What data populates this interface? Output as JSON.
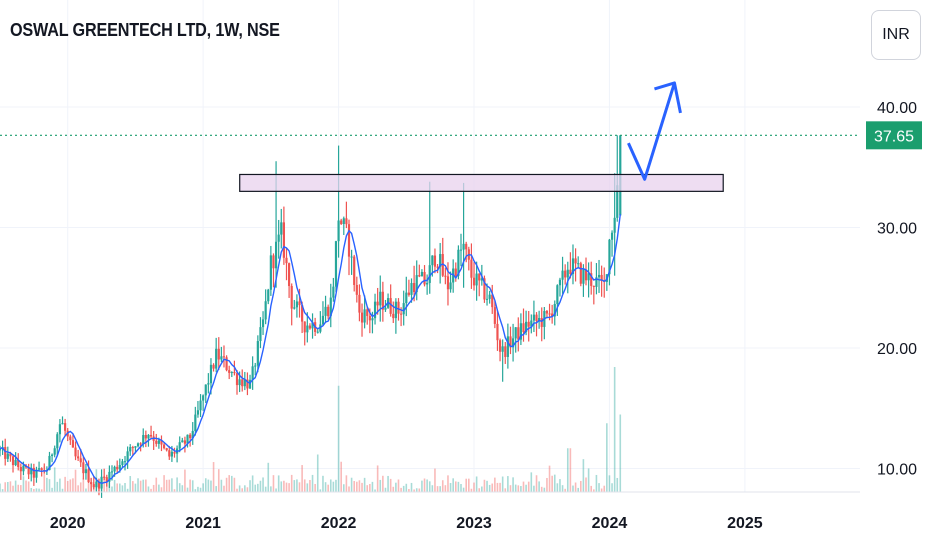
{
  "header": {
    "title": "OSWAL GREENTECH LTD, 1W, NSE",
    "currency": "INR"
  },
  "colors": {
    "up": "#26a69a",
    "down": "#ef5350",
    "ma": "#2962ff",
    "zone_fill": "#e8d2ee",
    "last_price_bg": "#1b9e6e",
    "arrow": "#2962ff"
  },
  "chart_data": {
    "type": "candlestick",
    "timeframe": "1W",
    "exchange": "NSE",
    "last_price": 37.65,
    "last_price_label": "37.65",
    "price_ticks": [
      "40.00",
      "30.00",
      "20.00",
      "10.00"
    ],
    "price_tick_values": [
      40,
      30,
      20,
      10
    ],
    "year_ticks": [
      "2020",
      "2021",
      "2022",
      "2023",
      "2024",
      "2025"
    ],
    "year_tick_values": [
      2020,
      2021,
      2022,
      2023,
      2024,
      2025
    ],
    "x_range": [
      2019.5,
      2025.85
    ],
    "y_range": [
      7.5,
      43.5
    ],
    "resistance_zone": {
      "from_date": 2021.27,
      "to_date": 2024.84,
      "low": 33.0,
      "high": 34.4
    },
    "projection_path": [
      [
        2024.14,
        37.0
      ],
      [
        2024.26,
        34.0
      ],
      [
        2024.48,
        42.0
      ]
    ],
    "projection_arrow_tip": [
      2024.48,
      42.0
    ],
    "price_keypoints": [
      [
        2019.5,
        11.5
      ],
      [
        2019.65,
        10.0
      ],
      [
        2019.75,
        9.5
      ],
      [
        2019.85,
        10.0
      ],
      [
        2019.95,
        14.0
      ],
      [
        2020.05,
        11.0
      ],
      [
        2020.2,
        8.5
      ],
      [
        2020.35,
        10.0
      ],
      [
        2020.5,
        12.0
      ],
      [
        2020.6,
        13.0
      ],
      [
        2020.75,
        11.0
      ],
      [
        2020.9,
        12.5
      ],
      [
        2021.0,
        16.0
      ],
      [
        2021.1,
        19.5
      ],
      [
        2021.25,
        17.5
      ],
      [
        2021.35,
        17.0
      ],
      [
        2021.45,
        22.5
      ],
      [
        2021.5,
        27.0
      ],
      [
        2021.58,
        29.5
      ],
      [
        2021.65,
        24.0
      ],
      [
        2021.75,
        22.0
      ],
      [
        2021.85,
        22.0
      ],
      [
        2021.95,
        24.0
      ],
      [
        2022.0,
        31.0
      ],
      [
        2022.07,
        29.0
      ],
      [
        2022.15,
        23.0
      ],
      [
        2022.25,
        22.5
      ],
      [
        2022.3,
        24.0
      ],
      [
        2022.45,
        23.0
      ],
      [
        2022.55,
        25.5
      ],
      [
        2022.65,
        25.5
      ],
      [
        2022.72,
        28.0
      ],
      [
        2022.8,
        25.0
      ],
      [
        2022.92,
        28.5
      ],
      [
        2022.98,
        26.0
      ],
      [
        2023.05,
        25.0
      ],
      [
        2023.12,
        24.0
      ],
      [
        2023.2,
        19.5
      ],
      [
        2023.3,
        21.0
      ],
      [
        2023.4,
        22.0
      ],
      [
        2023.55,
        22.5
      ],
      [
        2023.6,
        24.0
      ],
      [
        2023.7,
        27.0
      ],
      [
        2023.8,
        26.0
      ],
      [
        2023.9,
        25.5
      ],
      [
        2023.96,
        25.0
      ],
      [
        2024.0,
        29.0
      ],
      [
        2024.05,
        32.0
      ],
      [
        2024.08,
        37.65
      ]
    ],
    "price_spikes": [
      {
        "date": 2021.53,
        "high": 35.5,
        "low": 27.0
      },
      {
        "date": 2022.0,
        "high": 36.8,
        "low": 27.5
      },
      {
        "date": 2022.68,
        "high": 33.8,
        "low": 24.5
      },
      {
        "date": 2022.92,
        "high": 33.7,
        "low": 25.0
      },
      {
        "date": 2023.22,
        "high": 20.0,
        "low": 17.2
      },
      {
        "date": 2024.03,
        "high": 34.5,
        "low": 26.0
      },
      {
        "date": 2024.08,
        "high": 37.65,
        "low": 31.0
      }
    ],
    "volume_spikes": [
      {
        "date": 2022.0,
        "value": 0.85
      },
      {
        "date": 2023.98,
        "value": 0.55
      },
      {
        "date": 2024.04,
        "value": 1.0
      },
      {
        "date": 2024.08,
        "value": 0.62
      },
      {
        "date": 2023.7,
        "value": 0.35
      },
      {
        "date": 2021.85,
        "value": 0.3
      }
    ],
    "grid": true,
    "legend": "none"
  }
}
